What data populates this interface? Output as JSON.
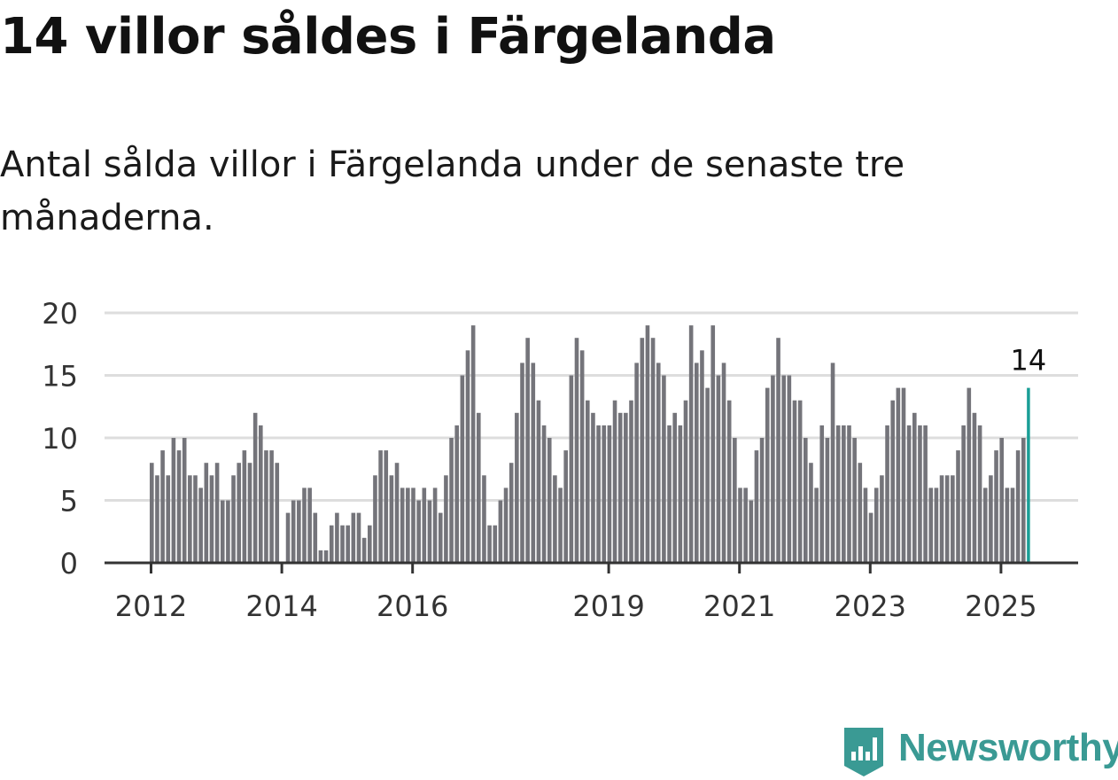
{
  "title": "14 villor såldes i Färgelanda",
  "subtitle": "Antal sålda villor i Färgelanda under de senaste tre månaderna.",
  "brand": {
    "name": "Newsworthy",
    "icon": "newsworthy-logo-icon",
    "color": "#3a9a94"
  },
  "colors": {
    "bar": "#74747a",
    "highlight": "#1a9e96",
    "grid": "#dddddd",
    "axis": "#333333"
  },
  "chart_data": {
    "type": "bar",
    "title": "",
    "xlabel": "",
    "ylabel": "",
    "ylim": [
      0,
      20
    ],
    "yticks": [
      0,
      5,
      10,
      15,
      20
    ],
    "grid": true,
    "x_start": "2012-01",
    "frequency": "monthly",
    "xticks": [
      {
        "label": "2012",
        "date": "2012-01"
      },
      {
        "label": "2014",
        "date": "2014-01"
      },
      {
        "label": "2016",
        "date": "2016-01"
      },
      {
        "label": "2019",
        "date": "2019-01"
      },
      {
        "label": "2021",
        "date": "2021-01"
      },
      {
        "label": "2023",
        "date": "2023-01"
      },
      {
        "label": "2025",
        "date": "2025-01"
      }
    ],
    "values": [
      8,
      7,
      9,
      7,
      10,
      9,
      10,
      7,
      7,
      6,
      8,
      7,
      8,
      5,
      5,
      7,
      8,
      9,
      8,
      12,
      11,
      9,
      9,
      8,
      0,
      4,
      5,
      5,
      6,
      6,
      4,
      1,
      1,
      3,
      4,
      3,
      3,
      4,
      4,
      2,
      3,
      7,
      9,
      9,
      7,
      8,
      6,
      6,
      6,
      5,
      6,
      5,
      6,
      4,
      7,
      10,
      11,
      15,
      17,
      19,
      12,
      7,
      3,
      3,
      5,
      6,
      8,
      12,
      16,
      18,
      16,
      13,
      11,
      10,
      7,
      6,
      9,
      15,
      18,
      17,
      13,
      12,
      11,
      11,
      11,
      13,
      12,
      12,
      13,
      16,
      18,
      19,
      18,
      16,
      15,
      11,
      12,
      11,
      13,
      19,
      16,
      17,
      14,
      19,
      15,
      16,
      13,
      10,
      6,
      6,
      5,
      9,
      10,
      14,
      15,
      18,
      15,
      15,
      13,
      13,
      10,
      8,
      6,
      11,
      10,
      16,
      11,
      11,
      11,
      10,
      8,
      6,
      4,
      6,
      7,
      11,
      13,
      14,
      14,
      11,
      12,
      11,
      11,
      6,
      6,
      7,
      7,
      7,
      9,
      11,
      14,
      12,
      11,
      6,
      7,
      9,
      10,
      6,
      6,
      9,
      10,
      14
    ],
    "highlight": {
      "date": "2025-06",
      "value": 14,
      "label": "14"
    }
  }
}
